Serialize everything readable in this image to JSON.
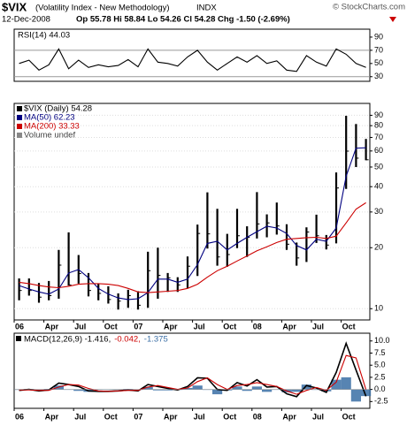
{
  "header": {
    "ticker": "$VIX",
    "description": "(Volatility Index - New Methodology)",
    "exchange": "INDX",
    "credit": "© StockCharts.com",
    "date": "12-Dec-2008",
    "quote": "Op 55.78 Hi 58.84 Lo 54.26 Cl 54.28 Chg -1.50 (-2.69%)"
  },
  "chart_data": [
    {
      "type": "line",
      "title": "RSI(14) 44.03",
      "x": [
        "2006-01",
        "2006-02",
        "2006-03",
        "2006-04",
        "2006-05",
        "2006-06",
        "2006-07",
        "2006-08",
        "2006-09",
        "2006-10",
        "2006-11",
        "2006-12",
        "2007-01",
        "2007-02",
        "2007-03",
        "2007-04",
        "2007-05",
        "2007-06",
        "2007-07",
        "2007-08",
        "2007-09",
        "2007-10",
        "2007-11",
        "2007-12",
        "2008-01",
        "2008-02",
        "2008-03",
        "2008-04",
        "2008-05",
        "2008-06",
        "2008-07",
        "2008-08",
        "2008-09",
        "2008-10",
        "2008-11",
        "2008-12"
      ],
      "series": [
        {
          "name": "RSI(14)",
          "color": "#000000",
          "style": "line",
          "values": [
            50,
            55,
            40,
            48,
            72,
            42,
            55,
            44,
            48,
            45,
            47,
            56,
            45,
            72,
            52,
            50,
            46,
            60,
            70,
            52,
            40,
            50,
            60,
            52,
            62,
            50,
            54,
            40,
            38,
            62,
            52,
            46,
            72,
            64,
            50,
            44.03
          ]
        }
      ],
      "ylim": [
        23,
        102
      ],
      "yticks": [
        90,
        70,
        50,
        30
      ],
      "reference_lines": [
        70,
        30
      ]
    },
    {
      "type": "ohlc",
      "log_scale": true,
      "x": [
        "2006-01",
        "2006-02",
        "2006-03",
        "2006-04",
        "2006-05",
        "2006-06",
        "2006-07",
        "2006-08",
        "2006-09",
        "2006-10",
        "2006-11",
        "2006-12",
        "2007-01",
        "2007-02",
        "2007-03",
        "2007-04",
        "2007-05",
        "2007-06",
        "2007-07",
        "2007-08",
        "2007-09",
        "2007-10",
        "2007-11",
        "2007-12",
        "2008-01",
        "2008-02",
        "2008-03",
        "2008-04",
        "2008-05",
        "2008-06",
        "2008-07",
        "2008-08",
        "2008-09",
        "2008-10",
        "2008-11",
        "2008-12"
      ],
      "series": [
        {
          "name": "$VIX (Daily) 54.28",
          "color": "#000000",
          "style": "ohlc",
          "high": [
            14.1,
            14.1,
            13.4,
            13.7,
            19.5,
            23.8,
            18.4,
            15.0,
            13.3,
            12.9,
            11.9,
            12.4,
            12.2,
            19.1,
            20.0,
            15.0,
            14.3,
            18.1,
            26.0,
            37.5,
            31.1,
            23.4,
            31.1,
            25.5,
            37.6,
            29.2,
            33.4,
            26.1,
            21.2,
            25.2,
            29.1,
            23.1,
            47.0,
            89.5,
            81.5,
            68.8
          ],
          "low": [
            11.0,
            11.6,
            10.7,
            11.0,
            11.2,
            13.0,
            13.3,
            11.5,
            11.0,
            10.6,
            9.9,
            10.1,
            9.9,
            10.1,
            11.2,
            12.1,
            12.1,
            12.6,
            14.5,
            19.8,
            16.3,
            16.1,
            19.9,
            18.0,
            22.2,
            22.5,
            23.2,
            19.5,
            16.3,
            17.0,
            21.1,
            19.6,
            21.0,
            39.0,
            50.0,
            54.0
          ],
          "close": [
            12.3,
            12.3,
            11.4,
            11.6,
            16.4,
            13.1,
            14.9,
            12.3,
            11.9,
            11.1,
            10.9,
            11.6,
            10.4,
            15.4,
            14.6,
            14.2,
            13.1,
            16.2,
            23.5,
            23.4,
            18.0,
            18.5,
            22.9,
            22.5,
            26.2,
            26.5,
            25.6,
            20.8,
            17.8,
            23.9,
            22.9,
            20.6,
            39.4,
            59.9,
            55.3,
            54.28
          ]
        },
        {
          "name": "MA(50) 62.23",
          "color": "#000080",
          "style": "line",
          "values": [
            13.0,
            12.5,
            12.1,
            11.8,
            12.5,
            15.0,
            15.6,
            14.2,
            12.6,
            11.8,
            11.3,
            11.1,
            11.2,
            12.0,
            14.0,
            14.0,
            13.5,
            14.0,
            16.5,
            21.0,
            21.5,
            19.5,
            21.0,
            22.5,
            24.0,
            25.5,
            25.0,
            23.5,
            20.5,
            19.5,
            22.0,
            21.5,
            25.0,
            45.0,
            62.0,
            62.23
          ]
        },
        {
          "name": "MA(200) 33.33",
          "color": "#cc0000",
          "style": "line",
          "values": [
            13.5,
            13.3,
            13.0,
            12.8,
            12.7,
            12.9,
            13.2,
            13.3,
            13.3,
            13.2,
            13.0,
            12.6,
            12.1,
            12.0,
            12.1,
            12.2,
            12.3,
            12.6,
            13.2,
            14.3,
            15.4,
            16.2,
            17.2,
            18.2,
            19.3,
            20.2,
            21.2,
            22.0,
            22.2,
            22.4,
            22.5,
            22.2,
            22.8,
            26.5,
            31.0,
            33.33
          ]
        }
      ],
      "volume_label": "Volume undef",
      "ylim": [
        8.8,
        103
      ],
      "yticks": [
        90,
        80,
        70,
        60,
        50,
        40,
        30,
        20,
        10
      ],
      "grid": true,
      "xticks": [
        {
          "value": "2006-01",
          "label": "06"
        },
        {
          "value": "2006-04",
          "label": "Apr"
        },
        {
          "value": "2006-07",
          "label": "Jul"
        },
        {
          "value": "2006-10",
          "label": "Oct"
        },
        {
          "value": "2007-01",
          "label": "07"
        },
        {
          "value": "2007-04",
          "label": "Apr"
        },
        {
          "value": "2007-07",
          "label": "Jul"
        },
        {
          "value": "2007-10",
          "label": "Oct"
        },
        {
          "value": "2008-01",
          "label": "08"
        },
        {
          "value": "2008-04",
          "label": "Apr"
        },
        {
          "value": "2008-07",
          "label": "Jul"
        },
        {
          "value": "2008-10",
          "label": "Oct"
        }
      ]
    },
    {
      "type": "macd",
      "x": [
        "2006-01",
        "2006-02",
        "2006-03",
        "2006-04",
        "2006-05",
        "2006-06",
        "2006-07",
        "2006-08",
        "2006-09",
        "2006-10",
        "2006-11",
        "2006-12",
        "2007-01",
        "2007-02",
        "2007-03",
        "2007-04",
        "2007-05",
        "2007-06",
        "2007-07",
        "2007-08",
        "2007-09",
        "2007-10",
        "2007-11",
        "2007-12",
        "2008-01",
        "2008-02",
        "2008-03",
        "2008-04",
        "2008-05",
        "2008-06",
        "2008-07",
        "2008-08",
        "2008-09",
        "2008-10",
        "2008-11",
        "2008-12"
      ],
      "series": [
        {
          "name": "MACD(12,26,9) -1.416,",
          "color": "#000000",
          "style": "line",
          "values": [
            -0.2,
            0.0,
            -0.3,
            -0.1,
            1.3,
            1.0,
            0.6,
            -0.3,
            -0.4,
            -0.4,
            -0.3,
            -0.1,
            -0.3,
            1.0,
            0.6,
            0.2,
            -0.1,
            0.6,
            2.4,
            2.3,
            0.0,
            -0.2,
            1.4,
            0.7,
            2.0,
            0.5,
            0.6,
            -0.9,
            -1.5,
            0.8,
            0.3,
            -0.6,
            3.5,
            9.5,
            4.0,
            -1.416
          ]
        },
        {
          "name": "-0.042,",
          "color": "#cc0000",
          "style": "line",
          "values": [
            -0.1,
            -0.1,
            -0.2,
            -0.2,
            0.5,
            1.0,
            0.9,
            0.2,
            -0.3,
            -0.4,
            -0.3,
            -0.2,
            -0.2,
            0.5,
            0.8,
            0.4,
            0.0,
            0.3,
            1.6,
            2.4,
            1.0,
            0.0,
            0.8,
            1.0,
            1.4,
            1.0,
            0.6,
            -0.3,
            -1.0,
            -0.2,
            0.4,
            -0.2,
            1.5,
            7.0,
            6.5,
            -0.042
          ]
        },
        {
          "name": "-1.375",
          "color": "#3a6ea5",
          "style": "bar",
          "values": [
            -0.1,
            0.1,
            -0.1,
            0.1,
            0.8,
            0.0,
            -0.3,
            -0.5,
            -0.1,
            0.0,
            0.0,
            0.1,
            -0.1,
            0.5,
            -0.2,
            -0.2,
            -0.1,
            0.3,
            0.8,
            -0.1,
            -1.0,
            -0.2,
            0.6,
            -0.3,
            0.6,
            -0.5,
            0.0,
            -0.6,
            -0.5,
            1.0,
            -0.1,
            -0.4,
            2.0,
            2.5,
            -2.5,
            -1.375
          ]
        }
      ],
      "ylim": [
        -3.9,
        11.6
      ],
      "yticks": [
        {
          "value": 10,
          "label": "10.0"
        },
        7.5,
        {
          "value": 5,
          "label": "5.0"
        },
        2.5,
        {
          "value": 0,
          "label": "0.0"
        },
        -2.5
      ],
      "xticks": [
        {
          "value": "2006-01",
          "label": "06"
        },
        {
          "value": "2006-04",
          "label": "Apr"
        },
        {
          "value": "2006-07",
          "label": "Jul"
        },
        {
          "value": "2006-10",
          "label": "Oct"
        },
        {
          "value": "2007-01",
          "label": "07"
        },
        {
          "value": "2007-04",
          "label": "Apr"
        },
        {
          "value": "2007-07",
          "label": "Jul"
        },
        {
          "value": "2007-10",
          "label": "Oct"
        },
        {
          "value": "2008-01",
          "label": "08"
        },
        {
          "value": "2008-04",
          "label": "Apr"
        },
        {
          "value": "2008-07",
          "label": "Jul"
        },
        {
          "value": "2008-10",
          "label": "Oct"
        }
      ]
    }
  ]
}
